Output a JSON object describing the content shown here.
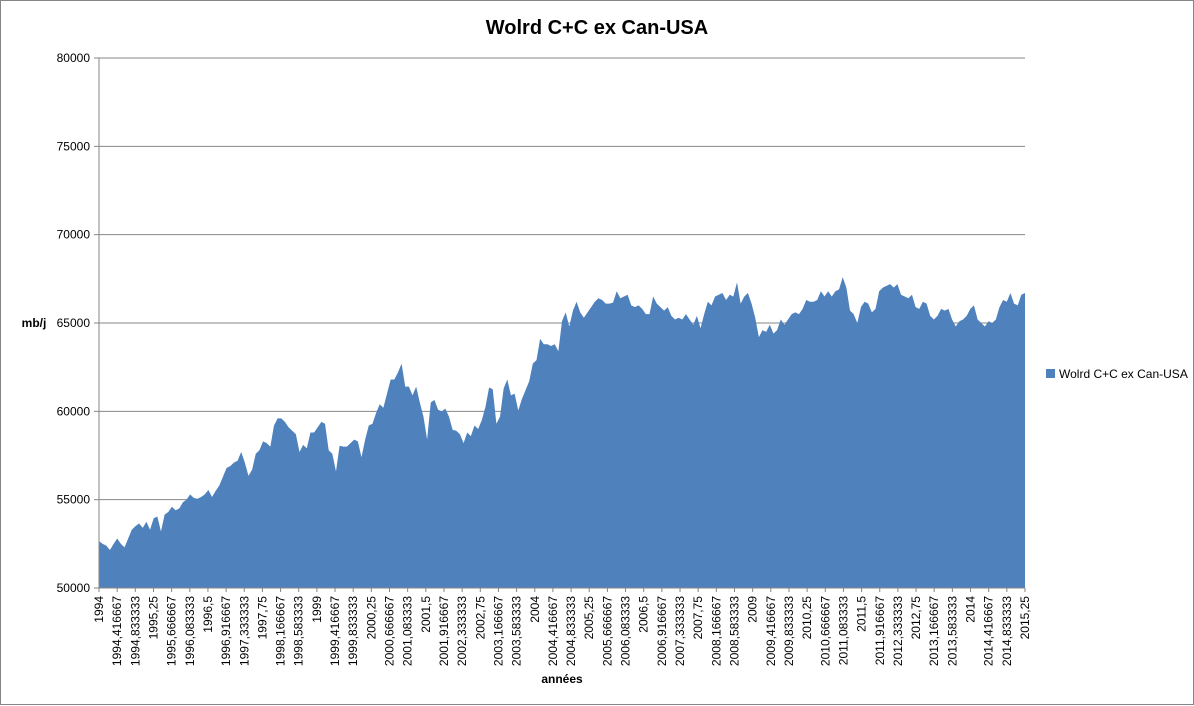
{
  "chart_data": {
    "type": "area",
    "title": "Wolrd C+C ex Can-USA",
    "xlabel": "années",
    "ylabel": "mb/j",
    "ylim": [
      50000,
      80000
    ],
    "yticks": [
      "50000",
      "55000",
      "60000",
      "65000",
      "70000",
      "75000",
      "80000"
    ],
    "grid": true,
    "legend_position": "right",
    "color": "#4F81BD",
    "xtick_labels": [
      "1994",
      "1994,416667",
      "1994,833333",
      "1995,25",
      "1995,666667",
      "1996,083333",
      "1996,5",
      "1996,916667",
      "1997,333333",
      "1997,75",
      "1998,166667",
      "1998,583333",
      "1999",
      "1999,416667",
      "1999,833333",
      "2000,25",
      "2000,666667",
      "2001,083333",
      "2001,5",
      "2001,916667",
      "2002,333333",
      "2002,75",
      "2003,166667",
      "2003,583333",
      "2004",
      "2004,416667",
      "2004,833333",
      "2005,25",
      "2005,666667",
      "2006,083333",
      "2006,5",
      "2006,916667",
      "2007,333333",
      "2007,75",
      "2008,166667",
      "2008,583333",
      "2009",
      "2009,416667",
      "2009,833333",
      "2010,25",
      "2010,666667",
      "2011,083333",
      "2011,5",
      "2011,916667",
      "2012,333333",
      "2012,75",
      "2013,166667",
      "2013,583333",
      "2014",
      "2014,416667",
      "2014,833333",
      "2015,25"
    ],
    "series": [
      {
        "name": "Wolrd C+C ex Can-USA",
        "x_start": 1994,
        "x_step": 0.0833333,
        "values": [
          52650,
          52500,
          52400,
          52150,
          52500,
          52800,
          52500,
          52300,
          52800,
          53300,
          53500,
          53650,
          53400,
          53750,
          53300,
          53950,
          54050,
          53200,
          54150,
          54300,
          54600,
          54400,
          54500,
          54850,
          55000,
          55300,
          55100,
          55050,
          55150,
          55300,
          55550,
          55150,
          55500,
          55800,
          56300,
          56800,
          56900,
          57100,
          57200,
          57700,
          57100,
          56350,
          56700,
          57600,
          57800,
          58300,
          58200,
          58000,
          59200,
          59600,
          59600,
          59400,
          59100,
          58900,
          58700,
          57700,
          58100,
          57900,
          58800,
          58800,
          59100,
          59400,
          59300,
          57800,
          57600,
          56600,
          58050,
          58000,
          58000,
          58200,
          58400,
          58300,
          57400,
          58400,
          59200,
          59300,
          59900,
          60400,
          60200,
          61000,
          61800,
          61800,
          62200,
          62700,
          61400,
          61400,
          60900,
          61400,
          60500,
          59700,
          58400,
          60500,
          60650,
          60100,
          60000,
          60150,
          59700,
          58950,
          58900,
          58700,
          58200,
          58800,
          58600,
          59200,
          59000,
          59500,
          60250,
          61350,
          61250,
          59300,
          59700,
          61300,
          61800,
          60900,
          61000,
          60050,
          60700,
          61200,
          61700,
          62700,
          62900,
          64100,
          63800,
          63800,
          63700,
          63800,
          63400,
          65100,
          65600,
          64800,
          65700,
          66200,
          65600,
          65300,
          65600,
          65900,
          66200,
          66400,
          66300,
          66100,
          66100,
          66150,
          66800,
          66400,
          66500,
          66600,
          66000,
          65900,
          66000,
          65800,
          65500,
          65500,
          66500,
          66100,
          65900,
          65700,
          65900,
          65400,
          65200,
          65300,
          65200,
          65500,
          65200,
          64900,
          65400,
          64700,
          65500,
          66200,
          66000,
          66500,
          66600,
          66700,
          66300,
          66600,
          66500,
          67300,
          66100,
          66500,
          66700,
          66100,
          65300,
          64200,
          64600,
          64500,
          64900,
          64400,
          64600,
          65200,
          64900,
          65200,
          65500,
          65600,
          65500,
          65800,
          66300,
          66200,
          66200,
          66300,
          66800,
          66500,
          66800,
          66500,
          66800,
          66900,
          67600,
          67000,
          65700,
          65500,
          65000,
          65900,
          66200,
          66100,
          65600,
          65800,
          66800,
          67000,
          67100,
          67200,
          67000,
          67200,
          66600,
          66500,
          66400,
          66600,
          65900,
          65800,
          66200,
          66100,
          65400,
          65200,
          65400,
          65800,
          65700,
          65800,
          65200,
          64800,
          65100,
          65200,
          65400,
          65800,
          66000,
          65200,
          65000,
          64800,
          65100,
          65000,
          65200,
          65900,
          66300,
          66200,
          66700,
          66100,
          66000,
          66600,
          66700
        ]
      }
    ]
  }
}
